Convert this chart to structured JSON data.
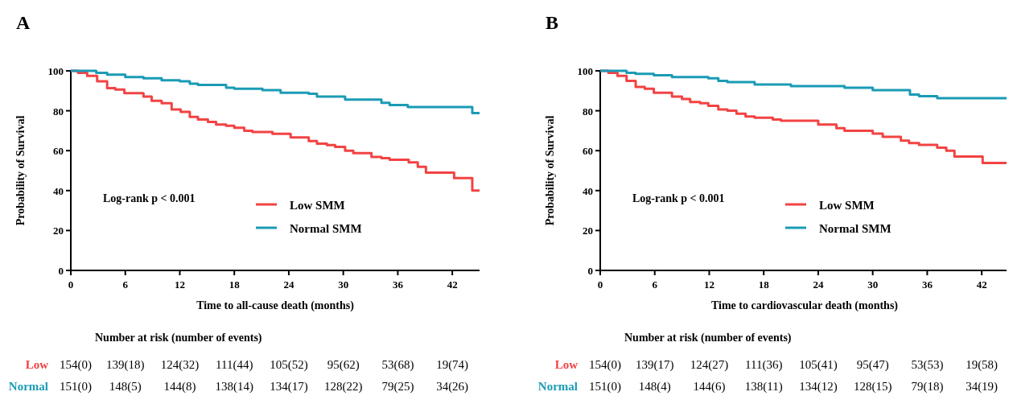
{
  "chart_data": [
    {
      "type": "step",
      "title": "A",
      "xlabel": "Time to all-cause death (months)",
      "ylabel": "Probability of Survival",
      "xlim": [
        0,
        45
      ],
      "ylim": [
        0,
        100
      ],
      "xticks": [
        0,
        6,
        12,
        18,
        24,
        30,
        36,
        42
      ],
      "yticks": [
        0,
        20,
        40,
        60,
        80,
        100
      ],
      "grid": false,
      "legend": "bottom right",
      "series": [
        {
          "name": "Low SMM",
          "color": "#f24343",
          "x": [
            0,
            0.8,
            1.8,
            2.9,
            4,
            4.9,
            5.9,
            8,
            8.9,
            10,
            11.1,
            12.1,
            13.1,
            14,
            15.1,
            16,
            17.1,
            18,
            19.1,
            20,
            22.2,
            24.2,
            26.2,
            27.1,
            28.2,
            29.1,
            30.2,
            31.1,
            33.1,
            34.2,
            35.1,
            37.2,
            38.2,
            39.1,
            42.2,
            44.2,
            45
          ],
          "values": [
            100,
            99,
            97.5,
            94.8,
            91.3,
            90.6,
            88.8,
            87.1,
            85,
            83.8,
            80.6,
            79.4,
            76.9,
            75.6,
            74.4,
            73.1,
            72.5,
            71.5,
            70,
            69.4,
            68.4,
            66.6,
            64.8,
            63.5,
            62.8,
            61.9,
            60,
            58.8,
            56.9,
            56.3,
            55.4,
            54.1,
            51.9,
            49,
            46.3,
            40,
            40
          ]
        },
        {
          "name": "Normal SMM",
          "color": "#1a9bb5",
          "x": [
            0,
            2.8,
            4,
            6,
            8,
            10,
            12,
            13.1,
            14,
            17.1,
            18,
            21.1,
            23.1,
            26.2,
            27.1,
            30.2,
            34.2,
            35.1,
            37.1,
            44.2,
            45
          ],
          "values": [
            100,
            99,
            98.1,
            96.9,
            96.3,
            95.3,
            94.8,
            93.5,
            92.9,
            91.5,
            91,
            90.3,
            89,
            88.5,
            87.1,
            85.6,
            84,
            82.9,
            81.9,
            78.8,
            78.8
          ]
        }
      ],
      "annotations": [
        "Log-rank p < 0.001",
        "Number at risk (number of events)",
        "Low",
        "154(0)",
        "139(18)",
        "124(32)",
        "111(44)",
        "105(52)",
        "95(62)",
        "53(68)",
        "19(74)",
        "Normal",
        "151(0)",
        "148(5)",
        "144(8)",
        "138(14)",
        "134(17)",
        "128(22)",
        "79(25)",
        "34(26)"
      ]
    },
    {
      "type": "step",
      "title": "B",
      "xlabel": "Time to cardiovascular death (months)",
      "ylabel": "Probability of Survival",
      "xlim": [
        0,
        45
      ],
      "ylim": [
        0,
        100
      ],
      "xticks": [
        0,
        6,
        12,
        18,
        24,
        30,
        36,
        42
      ],
      "yticks": [
        0,
        20,
        40,
        60,
        80,
        100
      ],
      "grid": false,
      "legend": "bottom right",
      "series": [
        {
          "name": "Low SMM",
          "color": "#f24343",
          "x": [
            0,
            0.9,
            1.9,
            2.9,
            3.9,
            4.9,
            5.9,
            7.9,
            9,
            9.9,
            11,
            11.9,
            13,
            14,
            15,
            16,
            17,
            19,
            19.9,
            24,
            26,
            26.9,
            30,
            31.1,
            33.1,
            34,
            35.1,
            37.1,
            38.1,
            39,
            42.1,
            45
          ],
          "values": [
            100,
            99,
            97.5,
            95,
            91.9,
            91,
            89,
            87.1,
            85.9,
            84.4,
            83.8,
            82.5,
            80.6,
            80,
            78.5,
            77.1,
            76.5,
            75.6,
            75,
            73.1,
            71.3,
            70,
            68.5,
            66.9,
            65,
            63.8,
            62.9,
            61.5,
            60,
            57.1,
            53.8,
            53.8
          ]
        },
        {
          "name": "Normal SMM",
          "color": "#1a9bb5",
          "x": [
            0,
            2.9,
            3.9,
            5.9,
            7.9,
            11.9,
            13,
            14,
            17,
            21,
            26.9,
            30,
            34.1,
            35.1,
            37.1,
            45
          ],
          "values": [
            100,
            99,
            98.5,
            97.8,
            96.9,
            96.3,
            95,
            94.4,
            93.1,
            92.3,
            91.5,
            90.3,
            88.1,
            87.3,
            86.3,
            86.3
          ]
        }
      ],
      "annotations": [
        "Log-rank p < 0.001",
        "Number at risk (number of events)",
        "Low",
        "154(0)",
        "139(17)",
        "124(27)",
        "111(36)",
        "105(41)",
        "95(47)",
        "53(53)",
        "19(58)",
        "Normal",
        "151(0)",
        "148(4)",
        "144(6)",
        "138(11)",
        "134(12)",
        "128(15)",
        "79(18)",
        "34(19)"
      ]
    }
  ]
}
